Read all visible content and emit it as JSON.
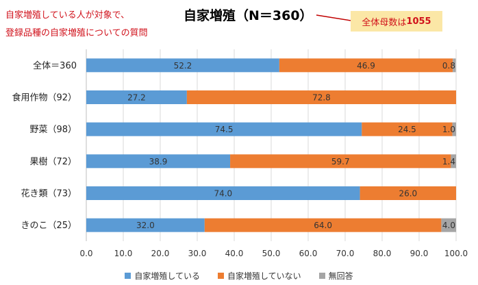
{
  "annotation": {
    "line1": "自家増殖している人が対象で、",
    "line2": "登録品種の自家増殖についての質問"
  },
  "callout": {
    "text": "全体母数は",
    "number": "1055"
  },
  "colors": {
    "self": "#5b9bd5",
    "not_self": "#ed7d31",
    "no_answer": "#a5a5a5",
    "note_red": "#d0111b"
  },
  "chart_data": {
    "type": "bar",
    "orientation": "horizontal",
    "stacked": true,
    "title": "自家増殖（N＝360）",
    "categories": [
      "全体＝360",
      "食用作物（92）",
      "野菜（98）",
      "果樹（72）",
      "花き類（73）",
      "きのこ（25）"
    ],
    "series": [
      {
        "name": "自家増殖している",
        "values": [
          52.2,
          27.2,
          74.5,
          38.9,
          74.0,
          32.0
        ]
      },
      {
        "name": "自家増殖していない",
        "values": [
          46.9,
          72.8,
          24.5,
          59.7,
          26.0,
          64.0
        ]
      },
      {
        "name": "無回答",
        "values": [
          0.8,
          0.0,
          1.0,
          1.4,
          0.0,
          4.0
        ]
      }
    ],
    "data_labels": [
      [
        "52.2",
        "46.9",
        "0.8"
      ],
      [
        "27.2",
        "72.8",
        ""
      ],
      [
        "74.5",
        "24.5",
        "1.0"
      ],
      [
        "38.9",
        "59.7",
        "1.4"
      ],
      [
        "74.0",
        "26.0",
        ""
      ],
      [
        "32.0",
        "64.0",
        "4.0"
      ]
    ],
    "xlim": [
      0,
      100
    ],
    "xticks": [
      "0.0",
      "10.0",
      "20.0",
      "30.0",
      "40.0",
      "50.0",
      "60.0",
      "70.0",
      "80.0",
      "90.0",
      "100.0"
    ],
    "grid": true,
    "legend_position": "bottom"
  }
}
